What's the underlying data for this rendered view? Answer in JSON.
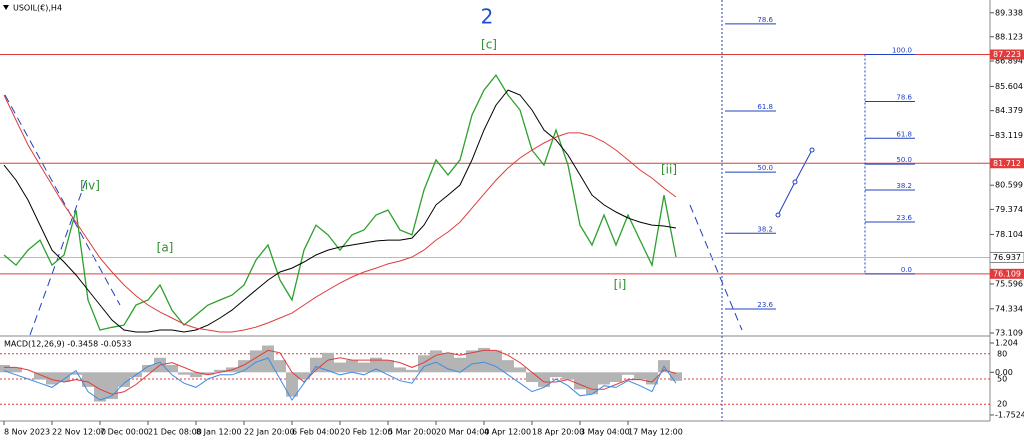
{
  "chart_data": [
    {
      "type": "line",
      "title": "USOIL(€),H4",
      "categories": [
        "8 Nov 2023",
        null,
        null,
        null,
        "22 Nov 12:00",
        null,
        null,
        null,
        "7 Dec 00:00",
        null,
        null,
        null,
        "21 Dec 08:00",
        null,
        null,
        null,
        "8 Jan 12:00",
        null,
        null,
        null,
        "22 Jan 20:00",
        null,
        null,
        null,
        "6 Feb 04:00",
        null,
        null,
        null,
        "20 Feb 12:00",
        null,
        null,
        null,
        "5 Mar 20:00",
        null,
        null,
        null,
        "20 Mar 04:00",
        null,
        null,
        null,
        "4 Apr 12:00",
        null,
        null,
        null,
        "18 Apr 20:00",
        null,
        null,
        null,
        "3 May 04:00",
        null,
        null,
        null,
        "17 May 12:00",
        null,
        null,
        null,
        null
      ],
      "series": [
        {
          "color": "#2ca02c",
          "values": [
            77.06,
            76.55,
            77.31,
            77.82,
            76.55,
            77.06,
            79.34,
            74.78,
            73.26,
            73.4,
            73.51,
            74.53,
            74.78,
            75.54,
            74.27,
            73.51,
            74.02,
            74.53,
            74.78,
            75.03,
            75.54,
            76.81,
            77.57,
            75.79,
            74.78,
            77.31,
            78.58,
            78.08,
            77.31,
            78.08,
            78.33,
            79.09,
            79.34,
            78.33,
            78.08,
            80.36,
            81.88,
            81.12,
            81.88,
            84.16,
            85.42,
            86.18,
            85.17,
            84.41,
            82.38,
            81.62,
            83.4,
            81.62,
            78.58,
            77.57,
            79.09,
            77.57,
            79.09,
            77.82,
            76.55,
            80.1,
            76.96
          ]
        },
        {
          "color": "#000000",
          "values": [
            81.62,
            80.86,
            79.85,
            78.58,
            77.31,
            76.71,
            76.05,
            75.29,
            74.53,
            73.77,
            73.26,
            73.16,
            73.16,
            73.26,
            73.26,
            73.16,
            73.26,
            73.51,
            73.87,
            74.27,
            74.78,
            75.29,
            75.79,
            76.2,
            76.4,
            76.71,
            77.06,
            77.31,
            77.47,
            77.57,
            77.67,
            77.77,
            77.82,
            77.82,
            77.92,
            78.58,
            79.6,
            80.1,
            80.61,
            81.88,
            83.4,
            84.66,
            85.42,
            85.17,
            84.41,
            83.4,
            82.89,
            82.13,
            81.12,
            80.1,
            79.6,
            79.24,
            78.94,
            78.73,
            78.58,
            78.53,
            78.43
          ]
        },
        {
          "color": "#e03c3c",
          "values": [
            85.17,
            83.9,
            82.64,
            81.62,
            80.61,
            79.6,
            78.73,
            77.82,
            76.91,
            76.2,
            75.54,
            74.99,
            74.53,
            74.17,
            73.87,
            73.56,
            73.36,
            73.26,
            73.16,
            73.16,
            73.26,
            73.41,
            73.62,
            73.87,
            74.12,
            74.53,
            74.93,
            75.29,
            75.64,
            75.95,
            76.2,
            76.4,
            76.61,
            76.76,
            76.96,
            77.31,
            77.82,
            78.23,
            78.73,
            79.44,
            80.15,
            80.86,
            81.47,
            81.98,
            82.38,
            82.74,
            83.04,
            83.25,
            83.25,
            83.09,
            82.79,
            82.38,
            81.88,
            81.37,
            80.96,
            80.46,
            80.0
          ]
        }
      ],
      "ylim": [
        73.008,
        89.986
      ],
      "yticks": [
        89.338,
        88.123,
        86.894,
        85.604,
        84.379,
        83.119,
        80.599,
        79.374,
        78.104,
        75.596,
        74.334,
        73.109
      ],
      "levels": [
        {
          "value": 87.223,
          "color": "#e03c3c"
        },
        {
          "value": 81.712,
          "color": "#e03c3c"
        },
        {
          "value": 76.109,
          "color": "#e03c3c"
        }
      ],
      "last_price": 76.937,
      "annotations": [
        {
          "text": "2"
        },
        {
          "text": "[c]"
        },
        {
          "text": "[iv]"
        },
        {
          "text": "[a]"
        },
        {
          "text": "[ii]"
        },
        {
          "text": "[i]"
        }
      ],
      "fib_left": [
        78.6,
        61.8,
        {
          "value": 50,
          "label": "50.0"
        },
        38.2,
        23.6
      ],
      "fib_right": [
        {
          "value": 100,
          "label": "100.0"
        },
        78.6,
        61.8,
        {
          "value": 50,
          "label": "50.0"
        },
        38.2,
        23.6,
        {
          "value": 0,
          "label": "0.0"
        }
      ]
    },
    {
      "type": "macd",
      "title": "MACD(12,26,9) -0.3458 -0.0533",
      "color": "#b4b4b4",
      "values": [
        0.3,
        0.2,
        0.0,
        -0.3,
        -0.5,
        -0.4,
        -0.1,
        -0.6,
        -1.2,
        -1.1,
        -0.6,
        -0.2,
        0.3,
        0.6,
        0.3,
        -0.1,
        -0.2,
        -0.1,
        0.1,
        0.2,
        0.5,
        0.9,
        1.1,
        0.5,
        -1.0,
        -0.3,
        0.6,
        0.8,
        0.4,
        0.5,
        0.4,
        0.6,
        0.5,
        0.2,
        0.1,
        0.7,
        0.9,
        0.8,
        0.6,
        0.9,
        1.0,
        0.9,
        0.5,
        0.2,
        -0.4,
        -0.6,
        -0.2,
        -0.3,
        -0.7,
        -0.9,
        -0.5,
        -0.4,
        -0.1,
        -0.3,
        -0.5,
        0.5,
        -0.35
      ],
      "series": [
        {
          "color": "#e03c3c",
          "values": [
            0.2,
            0.2,
            0.1,
            -0.1,
            -0.3,
            -0.4,
            -0.3,
            -0.4,
            -0.7,
            -0.9,
            -0.8,
            -0.5,
            -0.1,
            0.3,
            0.4,
            0.2,
            0.0,
            -0.1,
            0.0,
            0.1,
            0.3,
            0.6,
            0.9,
            0.8,
            0.0,
            -0.4,
            0.1,
            0.5,
            0.6,
            0.5,
            0.5,
            0.5,
            0.5,
            0.4,
            0.2,
            0.4,
            0.7,
            0.8,
            0.7,
            0.8,
            0.9,
            0.9,
            0.7,
            0.4,
            0.0,
            -0.4,
            -0.4,
            -0.3,
            -0.5,
            -0.7,
            -0.7,
            -0.5,
            -0.3,
            -0.3,
            -0.4,
            0.1,
            -0.05
          ]
        },
        {
          "color": "#3c8ce6",
          "axis": "y2",
          "values": [
            60,
            55,
            50,
            45,
            40,
            50,
            60,
            35,
            25,
            30,
            45,
            55,
            65,
            70,
            55,
            45,
            40,
            50,
            55,
            55,
            60,
            70,
            75,
            50,
            25,
            45,
            65,
            60,
            55,
            58,
            55,
            62,
            55,
            48,
            45,
            65,
            70,
            62,
            58,
            68,
            70,
            65,
            55,
            45,
            35,
            40,
            50,
            42,
            30,
            32,
            42,
            40,
            48,
            42,
            35,
            65,
            45
          ]
        }
      ],
      "ylim": [
        -2.0,
        1.45
      ],
      "yticks": [
        1.204,
        {
          "value": 0,
          "label": "0.00"
        },
        -1.7524
      ],
      "y2lim": [
        0,
        100
      ],
      "y2ticks": [
        20,
        50,
        80
      ]
    }
  ]
}
